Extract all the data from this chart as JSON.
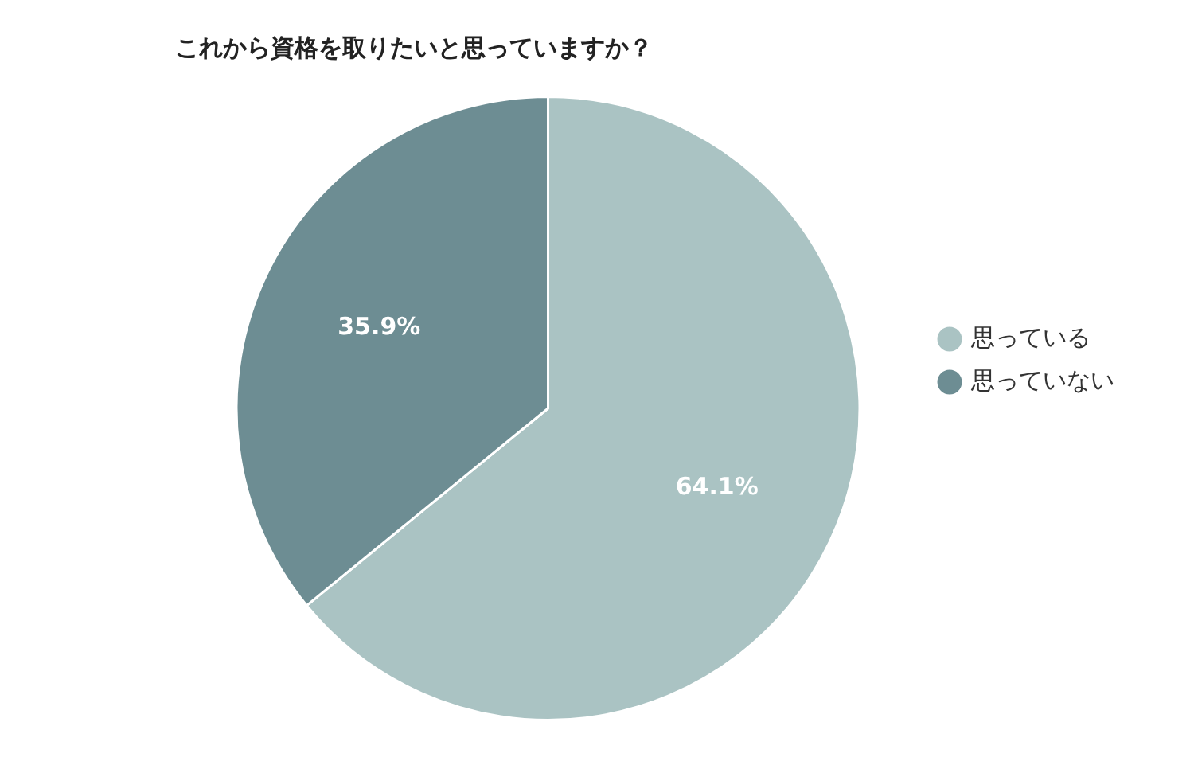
{
  "chart_data": {
    "type": "pie",
    "title": "これから資格を取りたいと思っていますか？",
    "categories": [
      "思っている",
      "思っていない"
    ],
    "values": [
      64.1,
      35.9
    ],
    "colors": [
      "#aac3c3",
      "#6d8d93"
    ],
    "value_labels": [
      "64.1%",
      "35.9%"
    ],
    "legend": "right"
  }
}
